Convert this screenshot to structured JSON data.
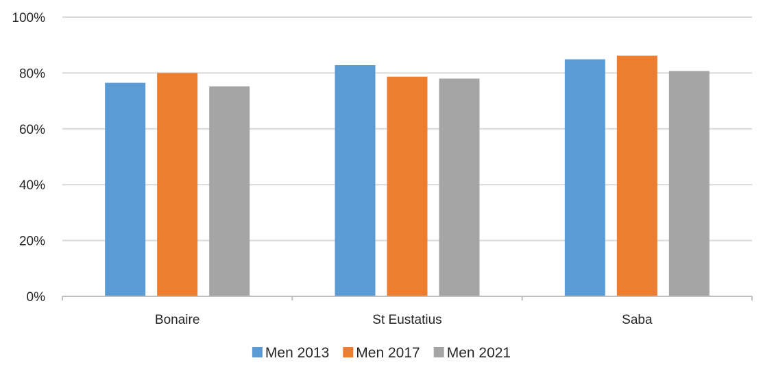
{
  "chart_data": {
    "type": "bar",
    "title": "",
    "xlabel": "",
    "ylabel": "",
    "categories": [
      "Bonaire",
      "St Eustatius",
      "Saba"
    ],
    "series": [
      {
        "name": "Men 2013",
        "values": [
          76.5,
          82.8,
          84.9
        ],
        "color": "#5b9bd5"
      },
      {
        "name": "Men 2017",
        "values": [
          80.0,
          78.7,
          86.2
        ],
        "color": "#ed7d31"
      },
      {
        "name": "Men 2021",
        "values": [
          75.2,
          78.0,
          80.7
        ],
        "color": "#a5a5a5"
      }
    ],
    "ylim": [
      0,
      100
    ],
    "yticks": [
      0,
      20,
      40,
      60,
      80,
      100
    ],
    "ytick_labels": [
      "0%",
      "20%",
      "40%",
      "60%",
      "80%",
      "100%"
    ],
    "grid": true,
    "legend": "bottom"
  }
}
